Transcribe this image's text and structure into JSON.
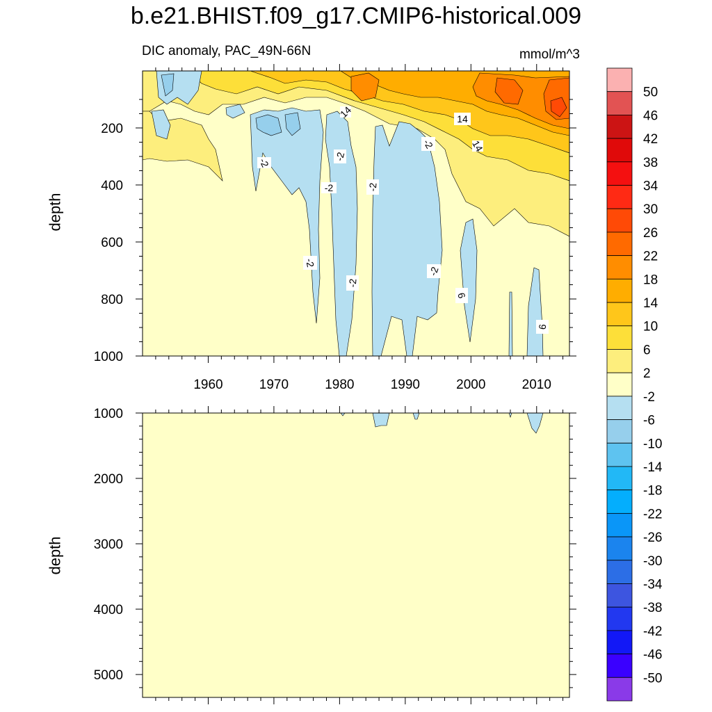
{
  "chart_data": [
    {
      "type": "heatmap",
      "title": "b.e21.BHIST.f09_g17.CMIP6-historical.009",
      "subtitle": "DIC anomaly, PAC_49N-66N",
      "units": "mmol/m^3",
      "xlabel": "",
      "ylabel": "depth",
      "xlim": [
        1950,
        2015
      ],
      "ylim": [
        1000,
        0
      ],
      "xticks": [
        1960,
        1970,
        1980,
        1990,
        2000,
        2010
      ],
      "yticks": [
        200,
        400,
        600,
        800,
        1000
      ],
      "contour_labels": [
        "-2",
        "-2",
        "-2",
        "-2",
        "-2",
        "-2",
        "-2",
        "-2",
        "6",
        "6",
        "14"
      ],
      "regions": [
        {
          "level": 2,
          "note": "background anomaly 2 to -2 below ~300 m"
        },
        {
          "level": -6,
          "note": "negative lobes 1967-1982 and 1985-1995 reaching 1000 m"
        },
        {
          "level": 22,
          "note": "surface positive anomaly growing after 1980, max near 2010"
        }
      ]
    },
    {
      "type": "heatmap",
      "xlabel": "",
      "ylabel": "depth",
      "xlim": [
        1950,
        2015
      ],
      "ylim": [
        5350,
        1000
      ],
      "yticks": [
        1000,
        2000,
        3000,
        4000,
        5000
      ],
      "regions": [
        {
          "level": 2,
          "note": "near-zero anomaly throughout"
        },
        {
          "level": -6,
          "note": "small negative patches at ~1000 m near 1986, 1991, 2009"
        }
      ]
    }
  ],
  "colorbar": {
    "labels": [
      "50",
      "46",
      "42",
      "38",
      "34",
      "30",
      "26",
      "22",
      "18",
      "14",
      "10",
      "6",
      "2",
      "-2",
      "-6",
      "-10",
      "-14",
      "-18",
      "-22",
      "-26",
      "-30",
      "-34",
      "-38",
      "-42",
      "-46",
      "-50"
    ],
    "colors": [
      "#fbb1b1",
      "#e25353",
      "#cc1414",
      "#e00a0a",
      "#f41010",
      "#ff2a14",
      "#ff4a06",
      "#ff6a00",
      "#ff8d00",
      "#ffad00",
      "#ffc61a",
      "#fddf39",
      "#fdee7d",
      "#ffffc8",
      "#b5dff1",
      "#96cfec",
      "#5ec3f0",
      "#22b8f6",
      "#04aefd",
      "#0a96f8",
      "#1b84ee",
      "#2c6ee6",
      "#3d55e0",
      "#2238f0",
      "#1218f6",
      "#3a00ff",
      "#8a3ae8"
    ]
  }
}
